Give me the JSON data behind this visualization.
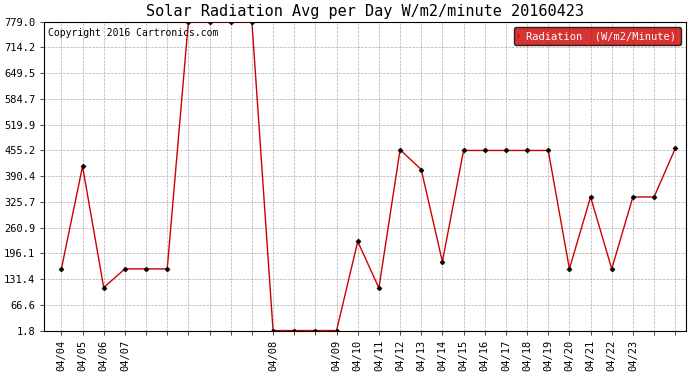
{
  "title": "Solar Radiation Avg per Day W/m2/minute 20160423",
  "copyright_text": "Copyright 2016 Cartronics.com",
  "legend_label": "Radiation  (W/m2/Minute)",
  "point_data": [
    [
      0,
      157
    ],
    [
      1,
      415
    ],
    [
      2,
      110
    ],
    [
      3,
      157
    ],
    [
      4,
      157
    ],
    [
      5,
      157
    ],
    [
      6,
      779
    ],
    [
      7,
      779
    ],
    [
      8,
      779
    ],
    [
      9,
      779
    ],
    [
      10,
      1.8
    ],
    [
      11,
      1.8
    ],
    [
      12,
      1.8
    ],
    [
      13,
      1.8
    ],
    [
      14,
      226
    ],
    [
      15,
      109
    ],
    [
      16,
      457
    ],
    [
      17,
      407
    ],
    [
      18,
      175
    ],
    [
      19,
      455
    ],
    [
      20,
      455
    ],
    [
      21,
      455
    ],
    [
      22,
      455
    ],
    [
      23,
      455
    ],
    [
      24,
      157
    ],
    [
      25,
      338
    ],
    [
      26,
      157
    ],
    [
      27,
      338
    ],
    [
      28,
      338
    ],
    [
      29,
      460
    ]
  ],
  "x_tick_labels": [
    "04/04",
    "04/05",
    "04/06",
    "04/07",
    "",
    "",
    "",
    "",
    "",
    "",
    "04/08",
    "",
    "",
    "04/09",
    "04/10",
    "04/11",
    "04/12",
    "04/13",
    "04/14",
    "04/15",
    "04/16",
    "04/17",
    "04/18",
    "04/19",
    "04/20",
    "04/21",
    "04/22",
    "04/23",
    "",
    ""
  ],
  "y_ticks": [
    1.8,
    66.6,
    131.4,
    196.1,
    260.9,
    325.7,
    390.4,
    455.2,
    519.9,
    584.7,
    649.5,
    714.2,
    779.0
  ],
  "ylim": [
    1.8,
    779.0
  ],
  "line_color": "#cc0000",
  "marker_color": "#000000",
  "bg_color": "#ffffff",
  "grid_color": "#999999",
  "legend_bg": "#cc0000",
  "legend_text_color": "#ffffff",
  "title_fontsize": 11,
  "tick_fontsize": 7.5,
  "copyright_fontsize": 7
}
